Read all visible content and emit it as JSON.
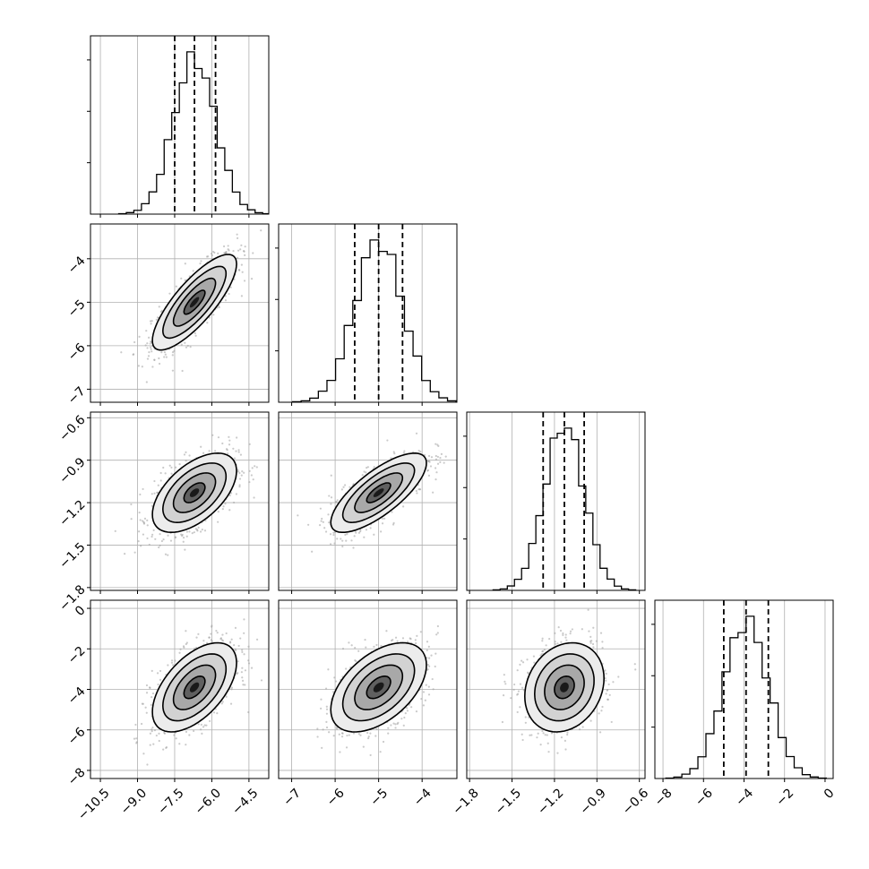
{
  "chart_data": {
    "type": "corner",
    "parameters": 4,
    "grid": true,
    "title": "",
    "parameter_labels": [
      "",
      "",
      "",
      ""
    ],
    "axes": [
      {
        "range": [
          -10.9,
          -3.7
        ],
        "ticks": [
          -10.5,
          -9.0,
          -7.5,
          -6.0,
          -4.5
        ],
        "tick_labels": [
          "−10.5",
          "−9.0",
          "−7.5",
          "−6.0",
          "−4.5"
        ]
      },
      {
        "range": [
          -7.3,
          -3.2
        ],
        "ticks": [
          -7,
          -6,
          -5,
          -4
        ],
        "tick_labels": [
          "−7",
          "−6",
          "−5",
          "−4"
        ]
      },
      {
        "range": [
          -1.82,
          -0.56
        ],
        "ticks": [
          -1.8,
          -1.5,
          -1.2,
          -0.9,
          -0.6
        ],
        "tick_labels": [
          "−1.8",
          "−1.5",
          "−1.2",
          "−0.9",
          "−0.6"
        ]
      },
      {
        "range": [
          -8.4,
          0.4
        ],
        "ticks": [
          -8,
          -6,
          -4,
          -2,
          0
        ],
        "tick_labels": [
          "−8",
          "−6",
          "−4",
          "−2",
          "0"
        ]
      }
    ],
    "marginals": [
      {
        "mean": -6.7,
        "std": 0.85,
        "quantiles": [
          -7.5,
          -6.7,
          -5.85
        ]
      },
      {
        "mean": -5.0,
        "std": 0.55,
        "quantiles": [
          -5.55,
          -5.0,
          -4.45
        ]
      },
      {
        "mean": -1.13,
        "std": 0.14,
        "quantiles": [
          -1.28,
          -1.13,
          -0.99
        ]
      },
      {
        "mean": -3.9,
        "std": 1.1,
        "quantiles": [
          -5.0,
          -3.9,
          -2.8
        ]
      }
    ],
    "correlations": [
      {
        "x": 0,
        "y": 1,
        "rho": 0.8
      },
      {
        "x": 0,
        "y": 2,
        "rho": 0.55
      },
      {
        "x": 1,
        "y": 2,
        "rho": 0.75
      },
      {
        "x": 0,
        "y": 3,
        "rho": 0.55
      },
      {
        "x": 1,
        "y": 3,
        "rho": 0.5
      },
      {
        "x": 2,
        "y": 3,
        "rho": 0.2
      }
    ],
    "contour_levels": [
      0.5,
      1.0,
      1.5,
      2.0
    ]
  }
}
